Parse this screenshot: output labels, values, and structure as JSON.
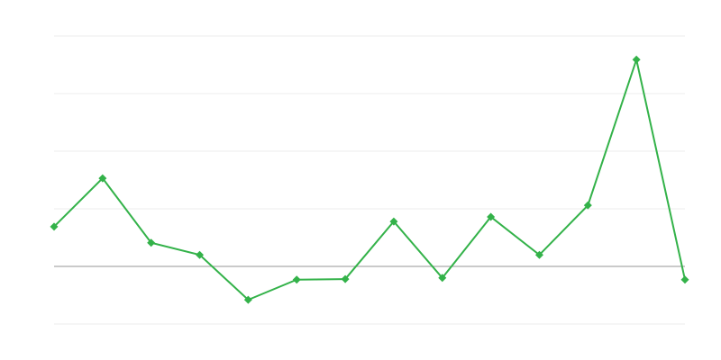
{
  "chart_data": {
    "type": "line",
    "title": "",
    "xlabel": "",
    "ylabel": "",
    "x": [
      1,
      2,
      3,
      4,
      5,
      6,
      7,
      8,
      9,
      10,
      11,
      12,
      13,
      14
    ],
    "series": [
      {
        "values": [
          0.69,
          1.53,
          0.41,
          0.2,
          -0.58,
          -0.23,
          -0.22,
          0.78,
          -0.2,
          0.86,
          0.2,
          1.06,
          3.59,
          -0.23
        ]
      }
    ],
    "ylim": [
      -1,
      4
    ],
    "gridlines": [
      -1,
      1,
      2,
      3,
      4
    ],
    "baseline": 0,
    "grid": true,
    "legend": "none",
    "colors": {
      "line": "#33b249",
      "grid": "#ececec",
      "baseline": "#aaaaaa"
    }
  }
}
